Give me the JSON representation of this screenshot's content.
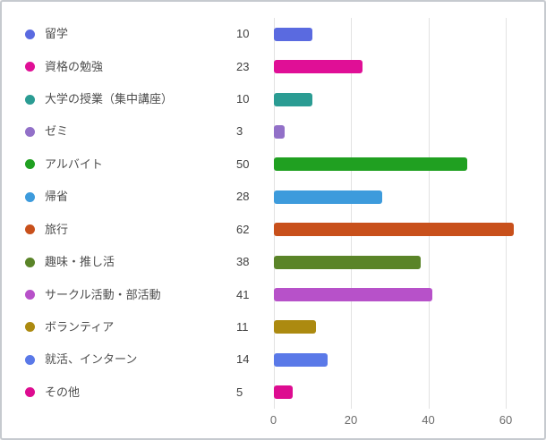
{
  "chart_data": {
    "type": "bar",
    "orientation": "horizontal",
    "title": "",
    "xlabel": "",
    "ylabel": "",
    "legend_position": "left",
    "grid": true,
    "xlim": [
      0,
      67
    ],
    "x_ticks": [
      0,
      20,
      40,
      60
    ],
    "x_tick_labels": [
      "0",
      "20",
      "40",
      "60"
    ],
    "categories": [
      "留学",
      "資格の勉強",
      "大学の授業（集中講座）",
      "ゼミ",
      "アルバイト",
      "帰省",
      "旅行",
      "趣味・推し活",
      "サークル活動・部活動",
      "ボランティア",
      "就活、インターン",
      "その他"
    ],
    "values": [
      10,
      23,
      10,
      3,
      50,
      28,
      62,
      38,
      41,
      11,
      14,
      5
    ],
    "value_labels": [
      "10",
      "23",
      "10",
      "3",
      "50",
      "28",
      "62",
      "38",
      "41",
      "11",
      "14",
      "5"
    ],
    "colors": [
      "#5a6ae0",
      "#e00f96",
      "#2b9c93",
      "#9270c8",
      "#20a021",
      "#3d9bdc",
      "#c8501b",
      "#5a8428",
      "#b751c9",
      "#ac8a10",
      "#5a79e8",
      "#dd0c90"
    ]
  },
  "styles": {
    "grid_color": "#e2e2e2",
    "card_border_color": "#c6cacf",
    "label_color": "#4d4d4d",
    "value_color": "#404040",
    "tick_color": "#6b6b6b",
    "background": "#ffffff"
  }
}
